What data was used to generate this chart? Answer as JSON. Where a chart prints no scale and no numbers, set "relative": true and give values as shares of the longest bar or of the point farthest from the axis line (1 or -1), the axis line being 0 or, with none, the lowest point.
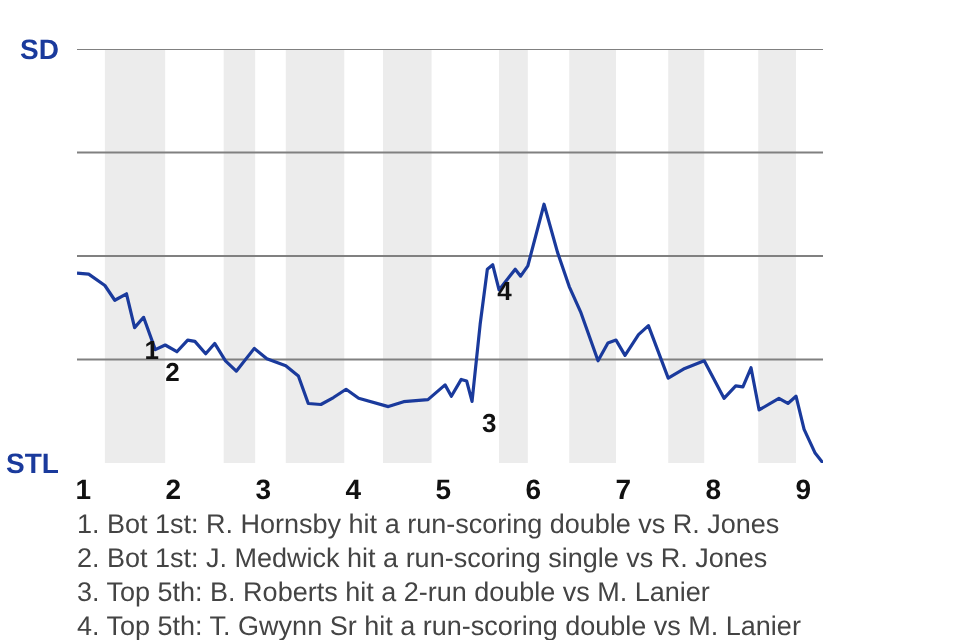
{
  "chart_data": {
    "type": "line",
    "relative": true,
    "x": [
      0.93,
      1.06,
      1.24,
      1.35,
      1.48,
      1.57,
      1.67,
      1.8,
      1.91,
      2.04,
      2.16,
      2.24,
      2.36,
      2.46,
      2.58,
      2.7,
      2.9,
      3.04,
      3.25,
      3.39,
      3.5,
      3.64,
      3.78,
      3.92,
      4.06,
      4.39,
      4.56,
      4.83,
      5.02,
      5.09,
      5.2,
      5.26,
      5.32,
      5.41,
      5.49,
      5.55,
      5.62,
      5.8,
      5.86,
      5.94,
      6.12,
      6.27,
      6.4,
      6.53,
      6.72,
      6.83,
      6.92,
      7.02,
      7.17,
      7.28,
      7.5,
      7.67,
      7.9,
      8.12,
      8.25,
      8.33,
      8.42,
      8.51,
      8.73,
      8.83,
      8.92,
      9.01,
      9.13,
      9.22
    ],
    "series": [
      {
        "color": "#1a3a9c",
        "values": [
          0.734,
          0.73,
          0.686,
          0.629,
          0.654,
          0.523,
          0.563,
          0.438,
          0.456,
          0.43,
          0.475,
          0.47,
          0.422,
          0.462,
          0.395,
          0.355,
          0.443,
          0.403,
          0.376,
          0.336,
          0.23,
          0.226,
          0.253,
          0.285,
          0.25,
          0.218,
          0.237,
          0.245,
          0.302,
          0.258,
          0.323,
          0.317,
          0.238,
          0.536,
          0.749,
          0.766,
          0.669,
          0.749,
          0.722,
          0.762,
          1,
          0.814,
          0.682,
          0.581,
          0.395,
          0.464,
          0.475,
          0.416,
          0.496,
          0.531,
          0.328,
          0.363,
          0.395,
          0.25,
          0.298,
          0.294,
          0.368,
          0.205,
          0.25,
          0.23,
          0.258,
          0.13,
          0.04,
          0
        ]
      }
    ],
    "xlim": [
      0.93,
      9.22
    ],
    "xticks": [
      1,
      2,
      3,
      4,
      5,
      6,
      7,
      8,
      9
    ],
    "bands": [
      {
        "axis": "x",
        "from": 1.24,
        "to": 1.91,
        "color": "#ececec"
      },
      {
        "axis": "x",
        "from": 2.56,
        "to": 2.91,
        "color": "#ececec"
      },
      {
        "axis": "x",
        "from": 3.25,
        "to": 3.9,
        "color": "#ececec"
      },
      {
        "axis": "x",
        "from": 4.33,
        "to": 4.87,
        "color": "#ececec"
      },
      {
        "axis": "x",
        "from": 5.62,
        "to": 5.94,
        "color": "#ececec"
      },
      {
        "axis": "x",
        "from": 6.4,
        "to": 6.92,
        "color": "#ececec"
      },
      {
        "axis": "x",
        "from": 7.5,
        "to": 7.9,
        "color": "#ececec"
      },
      {
        "axis": "x",
        "from": 8.5,
        "to": 8.92,
        "color": "#ececec"
      }
    ],
    "ref_lines": [
      {
        "axis": "y",
        "value": 0.4,
        "color": "#808080"
      },
      {
        "axis": "y",
        "value": 0.8,
        "color": "#808080"
      },
      {
        "axis": "y",
        "value": 1.2,
        "color": "#808080"
      },
      {
        "axis": "y",
        "value": 1.6,
        "color": "#808080"
      }
    ],
    "annotations": [
      "SD",
      "STL",
      {
        "text": "1",
        "x": 1.57,
        "y": 0.523
      },
      {
        "text": "2",
        "x": 1.8,
        "y": 0.438
      },
      {
        "text": "3",
        "x": 5.32,
        "y": 0.238
      },
      {
        "text": "4",
        "x": 5.49,
        "y": 0.749
      },
      "1. Bot 1st: R. Hornsby hit a run-scoring double vs R. Jones",
      "2. Bot 1st: J. Medwick hit a run-scoring single vs R. Jones",
      "3. Top 5th: B. Roberts hit a 2-run double vs M. Lanier",
      "4. Top 5th: T. Gwynn Sr hit a run-scoring double vs M. Lanier"
    ]
  }
}
